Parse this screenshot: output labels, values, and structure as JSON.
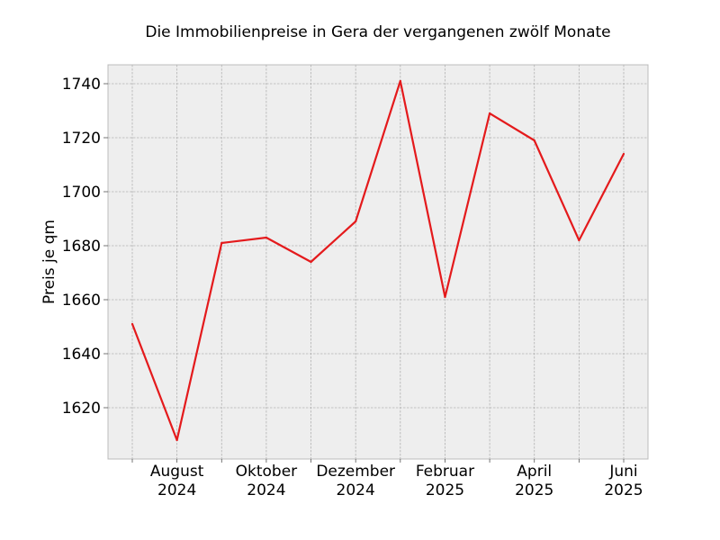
{
  "chart_data": {
    "type": "line",
    "title": "Die Immobilienpreise in Gera der vergangenen zwölf Monate",
    "xlabel": "",
    "ylabel": "Preis je qm",
    "x": [
      "2024-07",
      "2024-08",
      "2024-09",
      "2024-10",
      "2024-11",
      "2024-12",
      "2025-01",
      "2025-02",
      "2025-03",
      "2025-04",
      "2025-05",
      "2025-06"
    ],
    "series": [
      {
        "values": [
          1651,
          1608,
          1681,
          1683,
          1674,
          1689,
          1741,
          1661,
          1729,
          1719,
          1682,
          1714
        ]
      }
    ],
    "xticks": [
      {
        "x": "2024-08",
        "line1": "August",
        "line2": "2024"
      },
      {
        "x": "2024-10",
        "line1": "Oktober",
        "line2": "2024"
      },
      {
        "x": "2024-12",
        "line1": "Dezember",
        "line2": "2024"
      },
      {
        "x": "2025-02",
        "line1": "Februar",
        "line2": "2025"
      },
      {
        "x": "2025-04",
        "line1": "April",
        "line2": "2025"
      },
      {
        "x": "2025-06",
        "line1": "Juni",
        "line2": "2025"
      }
    ],
    "yticks": [
      1620,
      1640,
      1660,
      1680,
      1700,
      1720,
      1740
    ],
    "ylim": [
      1601,
      1747
    ],
    "grid": true,
    "line_color": "#e41a1c",
    "plot_background": "#eeeeee"
  }
}
